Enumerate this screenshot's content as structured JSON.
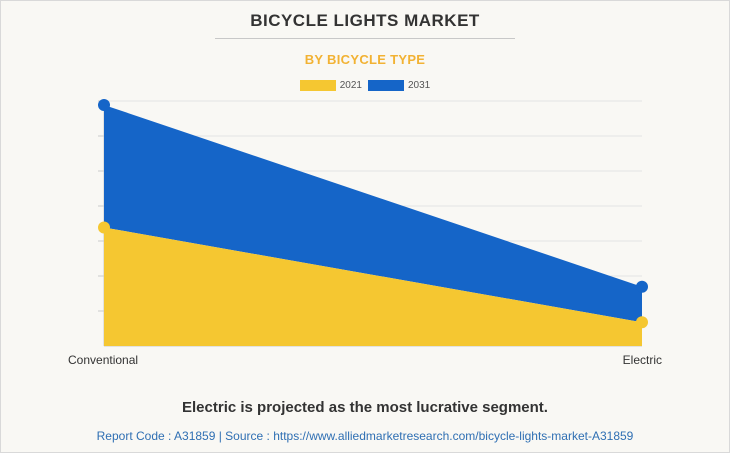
{
  "title": "BICYCLE LIGHTS MARKET",
  "subtitle": "BY BICYCLE TYPE",
  "headline": "Electric is projected as the most lucrative segment.",
  "source_line": "Report Code : A31859  |  Source : https://www.alliedmarketresearch.com/bicycle-lights-market-A31859",
  "colors": {
    "series_2021": "#f5c731",
    "series_2031": "#1565c8",
    "subtitle": "#f2b233",
    "grid": "#e3e3e3"
  },
  "chart_data": {
    "type": "area",
    "stacked": true,
    "categories": [
      "Conventional",
      "Electric"
    ],
    "series": [
      {
        "name": "2021",
        "values": [
          30,
          6
        ]
      },
      {
        "name": "2031",
        "values": [
          31,
          9
        ]
      }
    ],
    "ylim": [
      0,
      62
    ],
    "grid": true,
    "legend_position": "top-center",
    "y_axis_labels": false
  }
}
